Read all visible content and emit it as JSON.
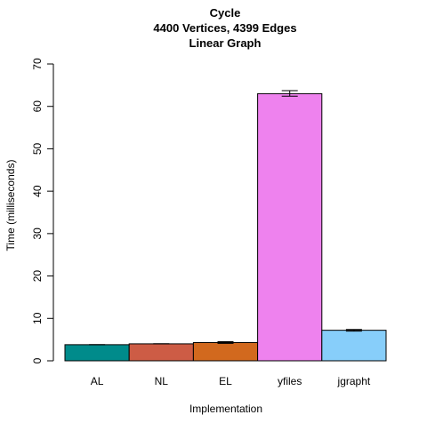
{
  "chart_data": {
    "type": "bar",
    "title_lines": [
      "Cycle",
      "4400 Vertices, 4399 Edges",
      "Linear Graph"
    ],
    "xlabel": "Implementation",
    "ylabel": "Time (milliseconds)",
    "categories": [
      "AL",
      "NL",
      "EL",
      "yfiles",
      "jgrapht"
    ],
    "values": [
      3.8,
      4.0,
      4.3,
      63.0,
      7.2
    ],
    "error_low": [
      3.8,
      4.0,
      4.1,
      62.4,
      7.0
    ],
    "error_high": [
      3.8,
      4.0,
      4.5,
      63.7,
      7.4
    ],
    "colors": [
      "#008B8B",
      "#CD5C45",
      "#D2691E",
      "#EE82EE",
      "#87CEFA"
    ],
    "ylim": [
      0,
      70
    ],
    "yticks": [
      0,
      10,
      20,
      30,
      40,
      50,
      60,
      70
    ],
    "grid": false,
    "legend": "none"
  }
}
